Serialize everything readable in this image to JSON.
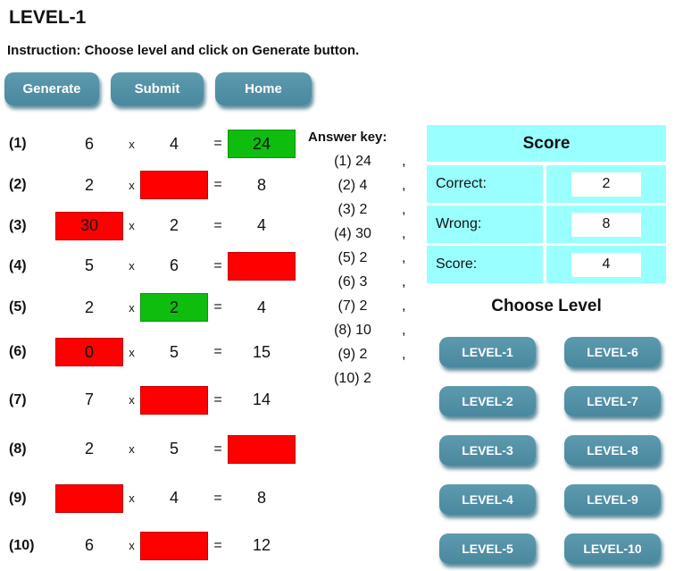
{
  "colors": {
    "button_teal": "#4E8CA2",
    "panel_cyan": "#99FFFF",
    "box_red": "#FF0000",
    "box_green": "#0EBD0E",
    "button_text": "#FFFFFF"
  },
  "header": {
    "title": "LEVEL-1",
    "instruction": "Instruction: Choose level and click on Generate button."
  },
  "toolbar": {
    "generate": "Generate",
    "submit": "Submit",
    "home": "Home"
  },
  "problems": {
    "operator": "x",
    "equals": "=",
    "rows": [
      {
        "label": "(1)",
        "a": {
          "text": "6",
          "box": null
        },
        "b": {
          "text": "4",
          "box": null
        },
        "ans": {
          "text": "24",
          "box": "green"
        }
      },
      {
        "label": "(2)",
        "a": {
          "text": "2",
          "box": null
        },
        "b": {
          "text": "",
          "box": "red"
        },
        "ans": {
          "text": "8",
          "box": null
        }
      },
      {
        "label": "(3)",
        "a": {
          "text": "30",
          "box": "red"
        },
        "b": {
          "text": "2",
          "box": null
        },
        "ans": {
          "text": "4",
          "box": null
        }
      },
      {
        "label": "(4)",
        "a": {
          "text": "5",
          "box": null
        },
        "b": {
          "text": "6",
          "box": null
        },
        "ans": {
          "text": "",
          "box": "red"
        }
      },
      {
        "label": "(5)",
        "a": {
          "text": "2",
          "box": null
        },
        "b": {
          "text": "2",
          "box": "green"
        },
        "ans": {
          "text": "4",
          "box": null
        }
      },
      {
        "label": "(6)",
        "a": {
          "text": "0",
          "box": "red"
        },
        "b": {
          "text": "5",
          "box": null
        },
        "ans": {
          "text": "15",
          "box": null
        }
      },
      {
        "label": "(7)",
        "a": {
          "text": "7",
          "box": null
        },
        "b": {
          "text": "",
          "box": "red"
        },
        "ans": {
          "text": "14",
          "box": null
        }
      },
      {
        "label": "(8)",
        "a": {
          "text": "2",
          "box": null
        },
        "b": {
          "text": "5",
          "box": null
        },
        "ans": {
          "text": "",
          "box": "red"
        }
      },
      {
        "label": "(9)",
        "a": {
          "text": "",
          "box": "red"
        },
        "b": {
          "text": "4",
          "box": null
        },
        "ans": {
          "text": "8",
          "box": null
        }
      },
      {
        "label": "(10)",
        "a": {
          "text": "6",
          "box": null
        },
        "b": {
          "text": "",
          "box": "red"
        },
        "ans": {
          "text": "12",
          "box": null
        }
      }
    ]
  },
  "answer_key": {
    "heading": "Answer key:",
    "entries": [
      {
        "text": "(1) 24",
        "sep": ","
      },
      {
        "text": "(2) 4",
        "sep": ","
      },
      {
        "text": "(3) 2",
        "sep": ","
      },
      {
        "text": "(4) 30",
        "sep": ","
      },
      {
        "text": "(5) 2",
        "sep": ","
      },
      {
        "text": "(6) 3",
        "sep": ","
      },
      {
        "text": "(7) 2",
        "sep": ","
      },
      {
        "text": "(8) 10",
        "sep": ","
      },
      {
        "text": "(9) 2",
        "sep": ","
      },
      {
        "text": "(10) 2",
        "sep": ""
      }
    ]
  },
  "score_panel": {
    "title": "Score",
    "rows": [
      {
        "label": "Correct:",
        "value": "2"
      },
      {
        "label": "Wrong:",
        "value": "8"
      },
      {
        "label": "Score:",
        "value": "4"
      }
    ]
  },
  "choose_level": {
    "heading": "Choose Level",
    "buttons": [
      "LEVEL-1",
      "LEVEL-2",
      "LEVEL-3",
      "LEVEL-4",
      "LEVEL-5",
      "LEVEL-6",
      "LEVEL-7",
      "LEVEL-8",
      "LEVEL-9",
      "LEVEL-10"
    ]
  }
}
